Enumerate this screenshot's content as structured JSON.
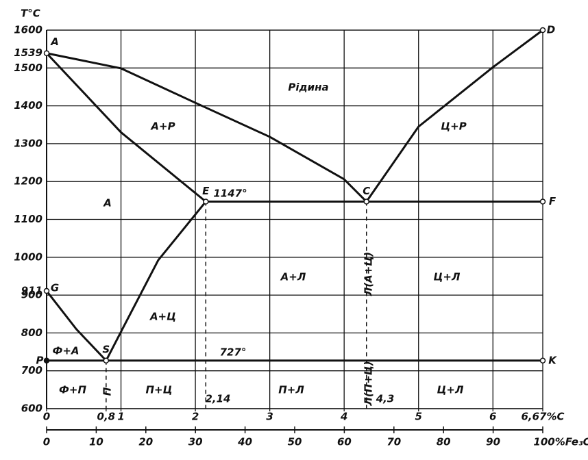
{
  "chart_data": {
    "type": "phase-diagram",
    "y_label": "T°C",
    "xlim": [
      0,
      6.67
    ],
    "ylim": [
      600,
      1600
    ],
    "x2lim": [
      0,
      100
    ],
    "xticks": [
      0,
      {
        "value": 0.8,
        "label": "0,8"
      },
      1,
      2,
      3,
      4,
      5,
      6,
      {
        "value": 6.67,
        "label": "6,67%C"
      }
    ],
    "yticks": [
      600,
      700,
      800,
      900,
      911,
      1000,
      1100,
      1200,
      1300,
      1400,
      1500,
      1539,
      1600
    ],
    "x2ticks": [
      0,
      10,
      20,
      30,
      40,
      50,
      60,
      70,
      80,
      90,
      {
        "value": 100,
        "label": "100%Fe₃C"
      }
    ],
    "grid": true,
    "color": "#111111",
    "series": [
      {
        "name": "ACD-liquidus-AC",
        "x": [
          0,
          1,
          2,
          3,
          4,
          4.3
        ],
        "values": [
          1539,
          1499,
          1408,
          1318,
          1206,
          1147
        ]
      },
      {
        "name": "ACD-liquidus-CD",
        "x": [
          4.3,
          5,
          6,
          6.67
        ],
        "values": [
          1147,
          1345,
          1502,
          1600
        ]
      },
      {
        "name": "AE-solidus",
        "x": [
          0,
          1,
          2.14
        ],
        "values": [
          1539,
          1330,
          1147
        ]
      },
      {
        "name": "ECF",
        "x": [
          2.14,
          6.67
        ],
        "values": [
          1147,
          1147
        ]
      },
      {
        "name": "GS",
        "x": [
          0,
          0.4,
          0.8
        ],
        "values": [
          911,
          810,
          727
        ]
      },
      {
        "name": "SE",
        "x": [
          0.8,
          1,
          1.5,
          2.14
        ],
        "values": [
          727,
          803,
          992,
          1147
        ]
      },
      {
        "name": "PSK",
        "x": [
          0,
          6.67
        ],
        "values": [
          727,
          727
        ]
      }
    ],
    "dashed": [
      {
        "x": [
          0.8,
          0.8
        ],
        "values": [
          727,
          600
        ]
      },
      {
        "x": [
          2.14,
          2.14
        ],
        "values": [
          1147,
          600
        ]
      },
      {
        "x": [
          4.3,
          4.3
        ],
        "values": [
          1147,
          600
        ]
      }
    ],
    "points": [
      {
        "name": "A",
        "x": 0,
        "y": 1539
      },
      {
        "name": "D",
        "x": 6.67,
        "y": 1600
      },
      {
        "name": "E",
        "x": 2.14,
        "y": 1147
      },
      {
        "name": "C",
        "x": 4.3,
        "y": 1147
      },
      {
        "name": "F",
        "x": 6.67,
        "y": 1147
      },
      {
        "name": "G",
        "x": 0,
        "y": 911
      },
      {
        "name": "S",
        "x": 0.8,
        "y": 727
      },
      {
        "name": "P",
        "x": 0,
        "y": 727
      },
      {
        "name": "K",
        "x": 6.67,
        "y": 727
      }
    ],
    "regions": [
      "Рідина",
      "А+Р",
      "Ц+Р",
      "А",
      "А+Л",
      "Л(А+Ц)",
      "Ц+Л",
      "Ф+А",
      "А+Ц",
      "Ф+П",
      "П",
      "П+Ц",
      "П+Л",
      "Л(П+Ц)",
      "Ц+Л"
    ],
    "annotations": [
      "1147°",
      "727°",
      "2,14",
      "4,3"
    ]
  }
}
